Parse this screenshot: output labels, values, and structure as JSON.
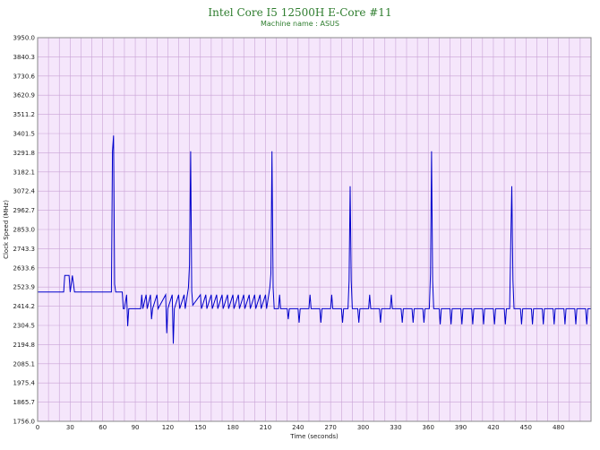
{
  "chart_data": {
    "type": "line",
    "title": "Intel Core I5 12500H E-Core #11",
    "subtitle": "Machine name : ASUS",
    "xlabel": "Time (seconds)",
    "ylabel": "Clock Speed (MHz)",
    "xlim": [
      0,
      510
    ],
    "ylim": [
      1756.0,
      3950.0
    ],
    "x_ticks": [
      0,
      30,
      60,
      90,
      120,
      150,
      180,
      210,
      240,
      270,
      300,
      330,
      360,
      390,
      420,
      450,
      480
    ],
    "y_ticks": [
      "1756.0",
      "1865.7",
      "1975.4",
      "2085.1",
      "2194.8",
      "2304.5",
      "2414.2",
      "2523.9",
      "2633.6",
      "2743.3",
      "2853.0",
      "2962.7",
      "3072.4",
      "3182.1",
      "3291.8",
      "3401.5",
      "3511.2",
      "3620.9",
      "3730.6",
      "3840.3",
      "3950.0"
    ],
    "grid": true,
    "colors": {
      "plot_background": "#f5e6fb",
      "grid": "#c9a3d6",
      "line": "#0000cc",
      "title": "#2e7d2e"
    },
    "series": [
      {
        "values": [
          [
            0,
            2495
          ],
          [
            24,
            2495
          ],
          [
            25,
            2590
          ],
          [
            29,
            2590
          ],
          [
            30,
            2495
          ],
          [
            32,
            2590
          ],
          [
            34,
            2495
          ],
          [
            68,
            2495
          ],
          [
            69,
            3300
          ],
          [
            70,
            3390
          ],
          [
            71,
            2540
          ],
          [
            72,
            2495
          ],
          [
            78,
            2495
          ],
          [
            79,
            2400
          ],
          [
            80,
            2400
          ],
          [
            82,
            2480
          ],
          [
            83,
            2300
          ],
          [
            84,
            2400
          ],
          [
            95,
            2400
          ],
          [
            96,
            2480
          ],
          [
            97,
            2400
          ],
          [
            100,
            2480
          ],
          [
            101,
            2400
          ],
          [
            104,
            2480
          ],
          [
            105,
            2340
          ],
          [
            106,
            2400
          ],
          [
            110,
            2480
          ],
          [
            111,
            2400
          ],
          [
            118,
            2480
          ],
          [
            119,
            2260
          ],
          [
            120,
            2400
          ],
          [
            124,
            2480
          ],
          [
            125,
            2200
          ],
          [
            126,
            2400
          ],
          [
            130,
            2480
          ],
          [
            131,
            2400
          ],
          [
            135,
            2480
          ],
          [
            136,
            2400
          ],
          [
            138,
            2480
          ],
          [
            139,
            2520
          ],
          [
            140,
            2650
          ],
          [
            141,
            3300
          ],
          [
            142,
            2500
          ],
          [
            143,
            2420
          ],
          [
            150,
            2480
          ],
          [
            151,
            2400
          ],
          [
            155,
            2480
          ],
          [
            156,
            2400
          ],
          [
            160,
            2480
          ],
          [
            161,
            2400
          ],
          [
            165,
            2480
          ],
          [
            166,
            2400
          ],
          [
            170,
            2480
          ],
          [
            171,
            2400
          ],
          [
            175,
            2480
          ],
          [
            176,
            2400
          ],
          [
            180,
            2480
          ],
          [
            181,
            2400
          ],
          [
            185,
            2480
          ],
          [
            186,
            2400
          ],
          [
            190,
            2480
          ],
          [
            191,
            2400
          ],
          [
            195,
            2480
          ],
          [
            196,
            2400
          ],
          [
            200,
            2480
          ],
          [
            201,
            2400
          ],
          [
            205,
            2480
          ],
          [
            206,
            2400
          ],
          [
            210,
            2480
          ],
          [
            211,
            2400
          ],
          [
            214,
            2520
          ],
          [
            215,
            2600
          ],
          [
            216,
            3300
          ],
          [
            217,
            2520
          ],
          [
            218,
            2400
          ],
          [
            222,
            2400
          ],
          [
            223,
            2480
          ],
          [
            224,
            2400
          ],
          [
            230,
            2400
          ],
          [
            231,
            2340
          ],
          [
            232,
            2400
          ],
          [
            240,
            2400
          ],
          [
            241,
            2320
          ],
          [
            242,
            2400
          ],
          [
            250,
            2400
          ],
          [
            251,
            2480
          ],
          [
            252,
            2400
          ],
          [
            260,
            2400
          ],
          [
            261,
            2320
          ],
          [
            262,
            2400
          ],
          [
            270,
            2400
          ],
          [
            271,
            2480
          ],
          [
            272,
            2400
          ],
          [
            280,
            2400
          ],
          [
            281,
            2320
          ],
          [
            282,
            2400
          ],
          [
            286,
            2400
          ],
          [
            287,
            2560
          ],
          [
            288,
            3100
          ],
          [
            289,
            2560
          ],
          [
            290,
            2400
          ],
          [
            295,
            2400
          ],
          [
            296,
            2320
          ],
          [
            297,
            2400
          ],
          [
            305,
            2400
          ],
          [
            306,
            2480
          ],
          [
            307,
            2400
          ],
          [
            315,
            2400
          ],
          [
            316,
            2320
          ],
          [
            317,
            2400
          ],
          [
            325,
            2400
          ],
          [
            326,
            2480
          ],
          [
            327,
            2400
          ],
          [
            335,
            2400
          ],
          [
            336,
            2320
          ],
          [
            337,
            2400
          ],
          [
            345,
            2400
          ],
          [
            346,
            2320
          ],
          [
            347,
            2400
          ],
          [
            355,
            2400
          ],
          [
            356,
            2320
          ],
          [
            357,
            2400
          ],
          [
            361,
            2400
          ],
          [
            362,
            2600
          ],
          [
            363,
            3300
          ],
          [
            364,
            2560
          ],
          [
            365,
            2400
          ],
          [
            370,
            2400
          ],
          [
            371,
            2310
          ],
          [
            372,
            2400
          ],
          [
            380,
            2400
          ],
          [
            381,
            2310
          ],
          [
            382,
            2400
          ],
          [
            390,
            2400
          ],
          [
            391,
            2310
          ],
          [
            392,
            2400
          ],
          [
            400,
            2400
          ],
          [
            401,
            2310
          ],
          [
            402,
            2400
          ],
          [
            410,
            2400
          ],
          [
            411,
            2310
          ],
          [
            412,
            2400
          ],
          [
            420,
            2400
          ],
          [
            421,
            2310
          ],
          [
            422,
            2400
          ],
          [
            430,
            2400
          ],
          [
            431,
            2310
          ],
          [
            432,
            2400
          ],
          [
            435,
            2400
          ],
          [
            436,
            2760
          ],
          [
            437,
            3100
          ],
          [
            438,
            2560
          ],
          [
            439,
            2400
          ],
          [
            445,
            2400
          ],
          [
            446,
            2310
          ],
          [
            447,
            2400
          ],
          [
            455,
            2400
          ],
          [
            456,
            2310
          ],
          [
            457,
            2400
          ],
          [
            465,
            2400
          ],
          [
            466,
            2310
          ],
          [
            467,
            2400
          ],
          [
            475,
            2400
          ],
          [
            476,
            2310
          ],
          [
            477,
            2400
          ],
          [
            485,
            2400
          ],
          [
            486,
            2310
          ],
          [
            487,
            2400
          ],
          [
            495,
            2400
          ],
          [
            496,
            2310
          ],
          [
            497,
            2400
          ],
          [
            505,
            2400
          ],
          [
            506,
            2310
          ],
          [
            507,
            2400
          ],
          [
            510,
            2400
          ]
        ]
      }
    ]
  }
}
